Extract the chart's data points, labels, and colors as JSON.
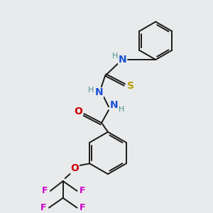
{
  "background_color": "#e8eaeb",
  "bond_color": "#1a1a1a",
  "atom_colors": {
    "N": "#1a4fd6",
    "O": "#cc0000",
    "S": "#b8a000",
    "F": "#cc00cc",
    "H": "#4a9090",
    "C": "#1a1a1a"
  },
  "figsize": [
    3.0,
    3.0
  ],
  "dpi": 100
}
